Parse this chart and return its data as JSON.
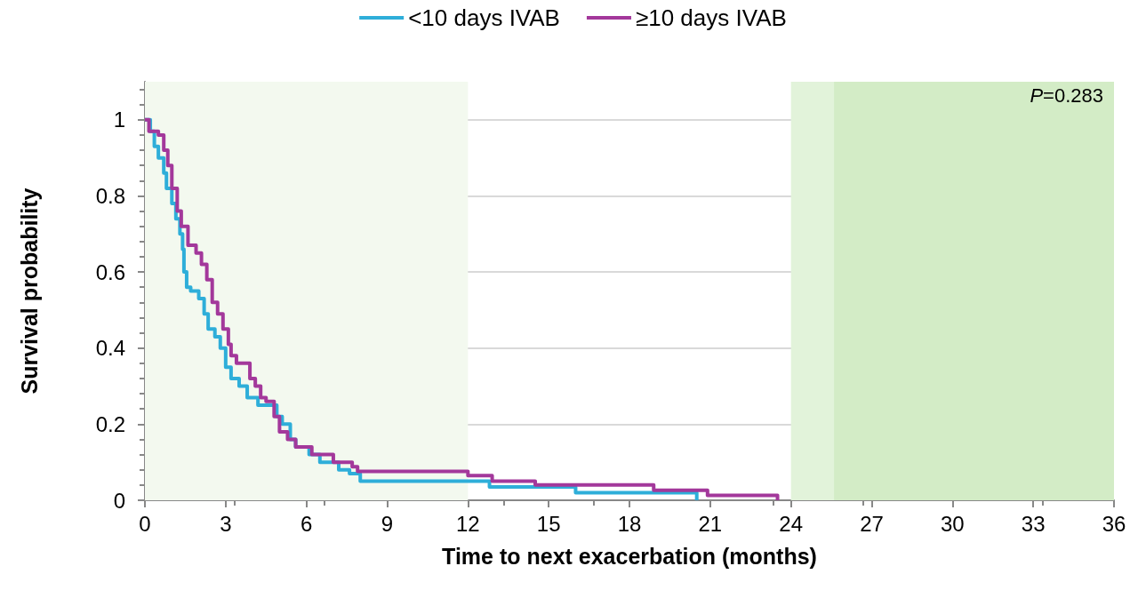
{
  "chart_data": {
    "type": "step",
    "xlabel": "Time to next exacerbation (months)",
    "ylabel": "Survival probability",
    "annotations": [
      "P=0.283"
    ],
    "xlim": [
      0,
      36
    ],
    "xticks": [
      0,
      3,
      6,
      9,
      12,
      15,
      18,
      21,
      24,
      27,
      30,
      33,
      36
    ],
    "ylim": [
      0,
      1.1
    ],
    "yticks": [
      0,
      0.2,
      0.4,
      0.6,
      0.8,
      1
    ],
    "grid": "y",
    "legend": "top",
    "marker": "none",
    "line_style": "solid",
    "bands": [
      {
        "axis": "x",
        "from": 0,
        "to": 12,
        "color": "#f3f9ef"
      },
      {
        "axis": "x",
        "from": 24,
        "to": 36,
        "color": "#e2f3da"
      },
      {
        "axis": "x",
        "from": 25.6,
        "to": 36,
        "color": "#d3ecc6"
      }
    ],
    "series": [
      {
        "name": "<10 days IVAB",
        "color": "#2eaed9",
        "x": [
          0,
          0.2,
          0.35,
          0.5,
          0.7,
          0.8,
          1.0,
          1.15,
          1.3,
          1.4,
          1.45,
          1.55,
          1.7,
          2.0,
          2.2,
          2.35,
          2.6,
          2.8,
          3.0,
          3.2,
          3.5,
          3.8,
          4.2,
          4.9,
          5.1,
          5.4,
          5.6,
          6.1,
          6.5,
          7.2,
          7.6,
          8.0,
          12.8,
          16.0,
          20.5,
          20.5
        ],
        "values": [
          1,
          0.97,
          0.93,
          0.9,
          0.86,
          0.82,
          0.78,
          0.74,
          0.7,
          0.66,
          0.6,
          0.56,
          0.55,
          0.53,
          0.49,
          0.45,
          0.43,
          0.4,
          0.35,
          0.32,
          0.3,
          0.27,
          0.25,
          0.22,
          0.2,
          0.16,
          0.14,
          0.12,
          0.1,
          0.08,
          0.07,
          0.05,
          0.035,
          0.02,
          0.02,
          0
        ]
      },
      {
        "name": "≥10 days IVAB",
        "color": "#a3389b",
        "x": [
          0,
          0.15,
          0.5,
          0.7,
          0.85,
          1.0,
          1.2,
          1.35,
          1.6,
          1.9,
          2.1,
          2.3,
          2.5,
          2.7,
          2.9,
          3.1,
          3.2,
          3.4,
          3.9,
          4.1,
          4.3,
          4.5,
          4.8,
          5.0,
          5.3,
          5.6,
          6.2,
          7.0,
          7.7,
          7.9,
          12.0,
          12.9,
          14.5,
          18.9,
          20.9,
          23.5,
          23.5
        ],
        "values": [
          1,
          0.97,
          0.96,
          0.92,
          0.88,
          0.82,
          0.76,
          0.72,
          0.67,
          0.65,
          0.62,
          0.58,
          0.52,
          0.49,
          0.45,
          0.41,
          0.38,
          0.36,
          0.32,
          0.3,
          0.27,
          0.26,
          0.22,
          0.18,
          0.16,
          0.14,
          0.12,
          0.1,
          0.088,
          0.076,
          0.065,
          0.05,
          0.04,
          0.026,
          0.013,
          0.013,
          0
        ]
      }
    ]
  }
}
